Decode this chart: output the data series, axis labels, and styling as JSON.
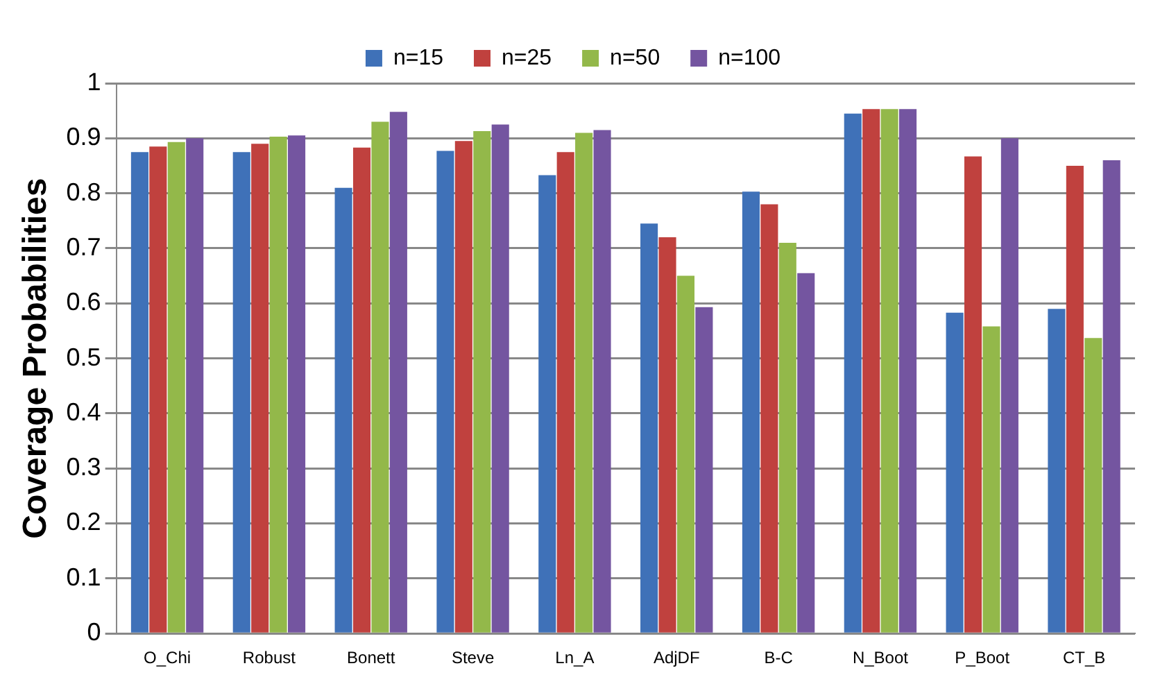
{
  "chart_data": {
    "type": "bar",
    "ylabel": "Coverage Probabilities",
    "categories": [
      "O_Chi",
      "Robust",
      "Bonett",
      "Steve",
      "Ln_A",
      "AdjDF",
      "B-C",
      "N_Boot",
      "P_Boot",
      "CT_B"
    ],
    "series": [
      {
        "name": "n=15",
        "color": "#3f71b8",
        "values": [
          0.875,
          0.875,
          0.81,
          0.877,
          0.833,
          0.745,
          0.803,
          0.945,
          0.583,
          0.59
        ]
      },
      {
        "name": "n=25",
        "color": "#c0413e",
        "values": [
          0.885,
          0.89,
          0.883,
          0.895,
          0.875,
          0.72,
          0.78,
          0.953,
          0.867,
          0.85
        ]
      },
      {
        "name": "n=50",
        "color": "#93b84a",
        "values": [
          0.893,
          0.903,
          0.93,
          0.913,
          0.91,
          0.65,
          0.71,
          0.953,
          0.558,
          0.537
        ]
      },
      {
        "name": "n=100",
        "color": "#7455a0",
        "values": [
          0.9,
          0.905,
          0.948,
          0.925,
          0.915,
          0.593,
          0.655,
          0.953,
          0.9,
          0.86
        ]
      }
    ],
    "ylim": [
      0,
      1
    ],
    "yticks": [
      0,
      0.1,
      0.2,
      0.3,
      0.4,
      0.5,
      0.6,
      0.7,
      0.8,
      0.9,
      1
    ],
    "grid": "y",
    "legend": "top"
  }
}
